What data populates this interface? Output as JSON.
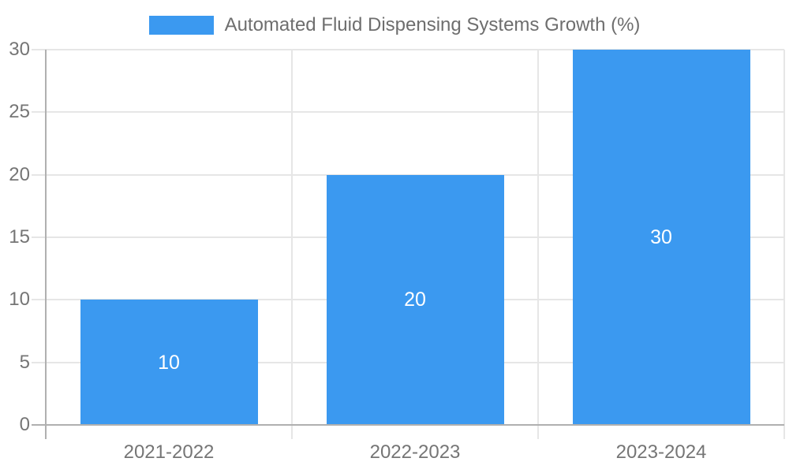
{
  "chart_data": {
    "type": "bar",
    "title": "Automated Fluid Dispensing Systems Growth (%)",
    "categories": [
      "2021-2022",
      "2022-2023",
      "2023-2024"
    ],
    "values": [
      10,
      20,
      30
    ],
    "bar_value_labels": [
      "10",
      "20",
      "30"
    ],
    "xlabel": "",
    "ylabel": "",
    "ylim": [
      0,
      30
    ],
    "yticks": [
      0,
      5,
      10,
      15,
      20,
      25,
      30
    ],
    "grid": true,
    "legend_position": "top-center",
    "colors": {
      "bar": "#3b99f0",
      "gridline": "#e6e6e6",
      "axis_line": "#b0b0b0",
      "tick_label": "#757575",
      "legend_text": "#6e6e6e",
      "bar_value_label": "#ffffff",
      "background": "#ffffff"
    }
  }
}
